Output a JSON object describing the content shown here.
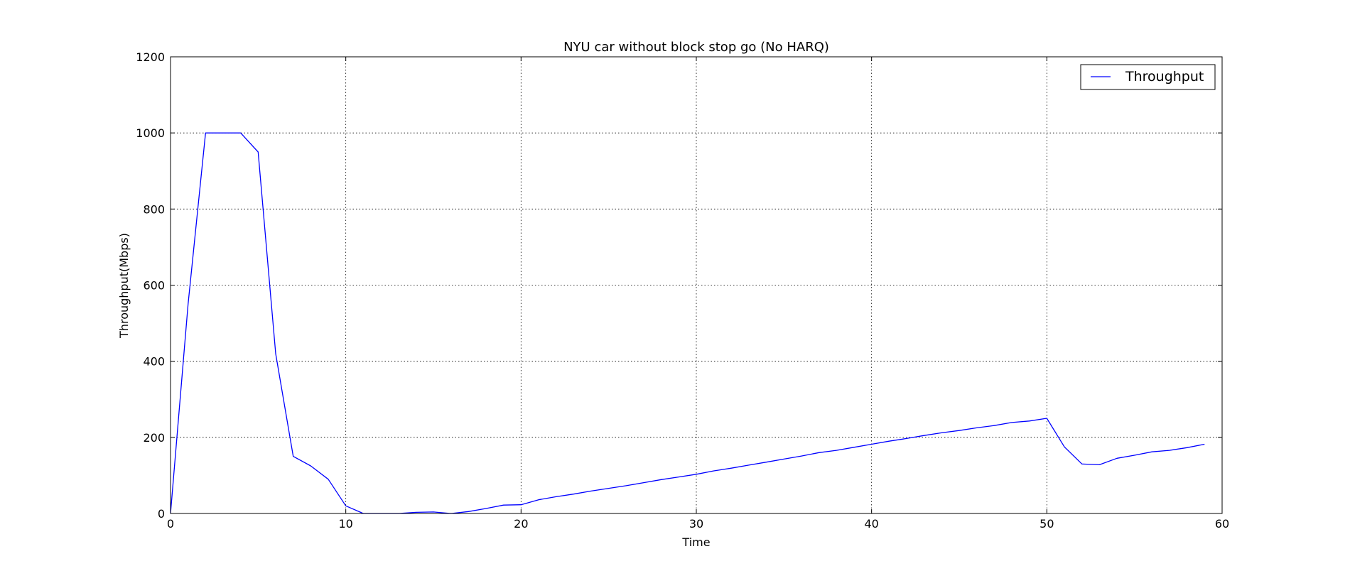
{
  "chart_data": {
    "type": "line",
    "title": "NYU car without block stop go (No HARQ)",
    "xlabel": "Time",
    "ylabel": "Throughput(Mbps)",
    "xlim": [
      0,
      60
    ],
    "ylim": [
      0,
      1200
    ],
    "xticks": [
      0,
      10,
      20,
      30,
      40,
      50,
      60
    ],
    "yticks": [
      0,
      200,
      400,
      600,
      800,
      1000,
      1200
    ],
    "grid": true,
    "legend_position": "top-right",
    "series": [
      {
        "name": "Throughput",
        "color": "#0000ff",
        "x": [
          0,
          1,
          2,
          3,
          4,
          5,
          6,
          7,
          8,
          9,
          10,
          11,
          12,
          13,
          14,
          15,
          16,
          17,
          18,
          19,
          20,
          21,
          22,
          23,
          24,
          25,
          26,
          27,
          28,
          29,
          30,
          31,
          32,
          33,
          34,
          35,
          36,
          37,
          38,
          39,
          40,
          41,
          42,
          43,
          44,
          45,
          46,
          47,
          48,
          49,
          50,
          51,
          52,
          53,
          54,
          55,
          56,
          57,
          58,
          59
        ],
        "y": [
          0,
          550,
          1000,
          1000,
          1000,
          950,
          420,
          150,
          125,
          90,
          20,
          0,
          0,
          0,
          3,
          4,
          0,
          5,
          13,
          22,
          23,
          36,
          44,
          51,
          59,
          66,
          73,
          81,
          89,
          96,
          103,
          112,
          119,
          127,
          135,
          143,
          151,
          160,
          166,
          174,
          182,
          190,
          197,
          205,
          212,
          218,
          225,
          231,
          239,
          243,
          250,
          175,
          130,
          128,
          145,
          153,
          162,
          166,
          173,
          182
        ]
      }
    ]
  }
}
